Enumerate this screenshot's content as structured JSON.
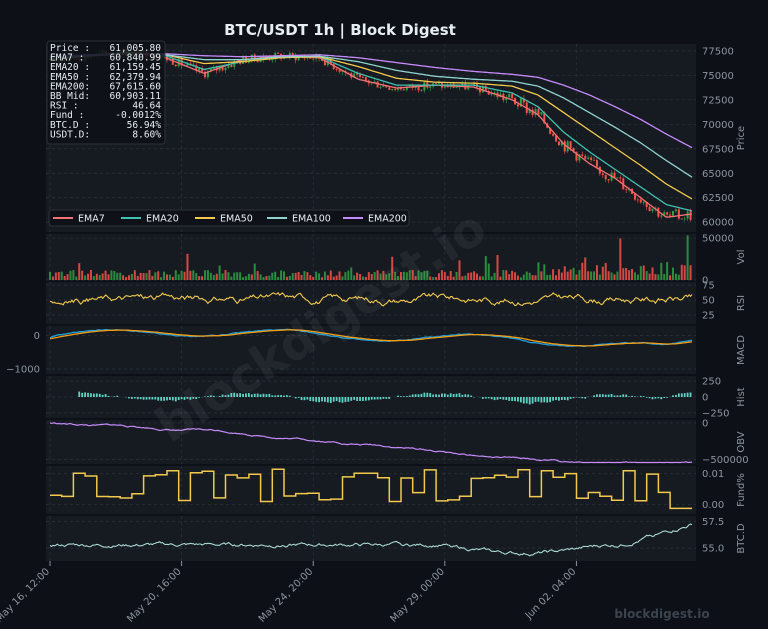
{
  "title": "BTC/USDT  1h  |  Block Digest",
  "watermark": "blockdigest.io",
  "colors": {
    "background": "#0d1117",
    "panel": "#161b22",
    "grid": "#2d333b",
    "up": "#2ea043",
    "down": "#f85149",
    "ema7": "#f47174",
    "ema20": "#3fc1b0",
    "ema50": "#f2c94c",
    "ema100": "#8fd3d0",
    "ema200": "#c58af9",
    "rsi": "#f2c94c",
    "macd": "#1f9ede",
    "signal": "#f39c12",
    "hist": "#5fd3c4",
    "obv": "#c58af9",
    "funding": "#f2c94c",
    "btcd": "#a8d8d0"
  },
  "info_box": [
    {
      "label": "Price :",
      "value": "61,005.80"
    },
    {
      "label": "EMA7  :",
      "value": "60,840.99"
    },
    {
      "label": "EMA20 :",
      "value": "61,159.45"
    },
    {
      "label": "EMA50 :",
      "value": "62,379.94"
    },
    {
      "label": "EMA200:",
      "value": "67,615.60"
    },
    {
      "label": "BB Mid:",
      "value": "60,903.11"
    },
    {
      "label": "RSI   :",
      "value": "46.64"
    },
    {
      "label": "Fund  :",
      "value": "-0.0012%"
    },
    {
      "label": "BTC.D :",
      "value": "56.94%"
    },
    {
      "label": "USDT.D:",
      "value": "8.60%"
    }
  ],
  "legend": [
    "EMA7",
    "EMA20",
    "EMA50",
    "EMA100",
    "EMA200"
  ],
  "chart_data": {
    "type": "line",
    "x_ticks": [
      "May 16, 12:00",
      "May 20, 16:00",
      "May 24, 20:00",
      "May 29, 00:00",
      "Jun 02, 04:00"
    ],
    "x_tick_fraction": [
      0.0,
      0.205,
      0.41,
      0.615,
      0.82
    ],
    "panels": [
      {
        "id": "price",
        "ylabel": "Price",
        "ylim": [
          59000,
          78200
        ],
        "yticks": [
          60000,
          62500,
          65000,
          67500,
          70000,
          72500,
          75000,
          77500
        ],
        "ytick_labels": [
          "60000",
          "62500",
          "65000",
          "67500",
          "70000",
          "72500",
          "75000",
          "77500"
        ],
        "series": [
          {
            "name": "EMA7",
            "x": [
              0,
              0.06,
              0.12,
              0.18,
              0.24,
              0.3,
              0.36,
              0.42,
              0.48,
              0.54,
              0.6,
              0.66,
              0.72,
              0.76,
              0.8,
              0.84,
              0.88,
              0.92,
              0.96,
              1.0
            ],
            "values": [
              76500,
              77000,
              77400,
              76800,
              75200,
              76600,
              77000,
              76800,
              74600,
              73700,
              74000,
              73800,
              72500,
              71000,
              68000,
              66000,
              64500,
              62500,
              60500,
              60840
            ]
          },
          {
            "name": "EMA20",
            "x": [
              0,
              0.06,
              0.12,
              0.18,
              0.24,
              0.3,
              0.36,
              0.42,
              0.48,
              0.54,
              0.6,
              0.66,
              0.72,
              0.76,
              0.8,
              0.84,
              0.88,
              0.92,
              0.96,
              1.0
            ],
            "values": [
              76600,
              77000,
              77400,
              77000,
              75600,
              76400,
              76900,
              76900,
              75200,
              74000,
              74000,
              74000,
              73200,
              71800,
              69200,
              67200,
              65400,
              63600,
              61800,
              61159
            ]
          },
          {
            "name": "EMA50",
            "x": [
              0,
              0.06,
              0.12,
              0.18,
              0.24,
              0.3,
              0.36,
              0.42,
              0.48,
              0.54,
              0.6,
              0.66,
              0.72,
              0.76,
              0.8,
              0.84,
              0.88,
              0.92,
              0.96,
              1.0
            ],
            "values": [
              76700,
              77000,
              77300,
              77100,
              76200,
              76400,
              76800,
              76900,
              75900,
              74700,
              74300,
              74200,
              73900,
              73000,
              71200,
              69400,
              67600,
              65800,
              63900,
              62380
            ]
          },
          {
            "name": "EMA100",
            "x": [
              0,
              0.06,
              0.12,
              0.18,
              0.24,
              0.3,
              0.36,
              0.42,
              0.48,
              0.54,
              0.6,
              0.66,
              0.72,
              0.76,
              0.8,
              0.84,
              0.88,
              0.92,
              0.96,
              1.0
            ],
            "values": [
              76800,
              77000,
              77200,
              77100,
              76600,
              76600,
              76900,
              76950,
              76400,
              75500,
              74900,
              74600,
              74400,
              73900,
              72700,
              71200,
              69700,
              68100,
              66300,
              64600
            ]
          },
          {
            "name": "EMA200",
            "x": [
              0,
              0.06,
              0.12,
              0.18,
              0.24,
              0.3,
              0.36,
              0.42,
              0.48,
              0.54,
              0.6,
              0.66,
              0.72,
              0.76,
              0.8,
              0.84,
              0.88,
              0.92,
              0.96,
              1.0
            ],
            "values": [
              76900,
              77100,
              77200,
              77200,
              77000,
              76900,
              77000,
              77100,
              76800,
              76300,
              75800,
              75400,
              75100,
              74800,
              74000,
              73000,
              71800,
              70500,
              69000,
              67615
            ]
          }
        ]
      },
      {
        "id": "vol",
        "ylabel": "Vol",
        "ylim": [
          0,
          55000
        ],
        "yticks": [
          0,
          50000
        ],
        "ytick_labels": [
          "0",
          "50000"
        ]
      },
      {
        "id": "rsi",
        "ylabel": "RSI",
        "ylim": [
          10,
          80
        ],
        "yticks": [
          25,
          50,
          75
        ],
        "ytick_labels": [
          "25",
          "50",
          "75"
        ]
      },
      {
        "id": "macd",
        "ylabel": "MACD",
        "ylim": [
          -1150,
          280
        ],
        "yticks": [
          0,
          -1000
        ],
        "ytick_labels": [
          "0",
          "−1000"
        ]
      },
      {
        "id": "hist",
        "ylabel": "Hist",
        "ylim": [
          -330,
          330
        ],
        "yticks": [
          250,
          0,
          -250
        ],
        "ytick_labels": [
          "250",
          "0",
          "−250"
        ]
      },
      {
        "id": "obv",
        "ylabel": "OBV",
        "ylim": [
          -560000,
          40000
        ],
        "yticks": [
          0,
          -500000
        ],
        "ytick_labels": [
          "0",
          "−500000"
        ]
      },
      {
        "id": "fund",
        "ylabel": "Fund%",
        "ylim": [
          -0.003,
          0.0125
        ],
        "yticks": [
          0.01,
          0.0
        ],
        "ytick_labels": [
          "0.01",
          "0.00"
        ]
      },
      {
        "id": "btcd",
        "ylabel": "BTC.D",
        "ylim": [
          53.8,
          58.0
        ],
        "yticks": [
          57.5,
          55.0
        ],
        "ytick_labels": [
          "57.5",
          "55.0"
        ]
      }
    ]
  }
}
